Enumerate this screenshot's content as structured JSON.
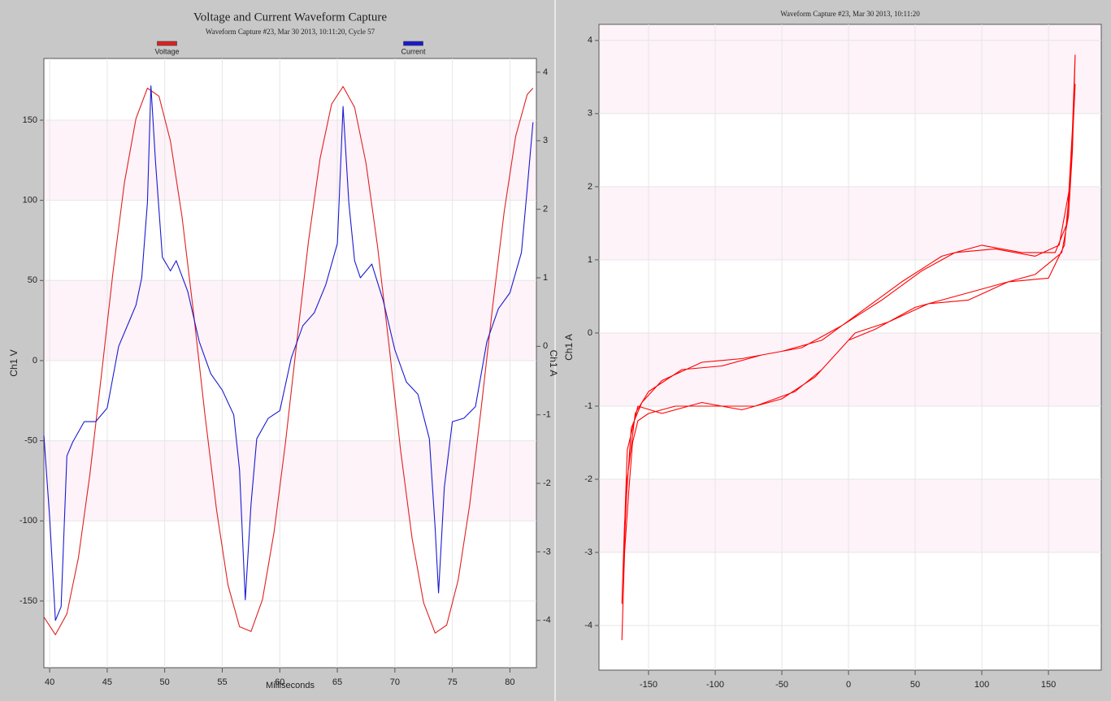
{
  "chart_data": [
    {
      "type": "line",
      "title": "Voltage and Current Waveform Capture",
      "subtitle": "Waveform Capture #23, Mar 30 2013, 10:11:20,  Cycle 57",
      "x_label": "Milliseconds",
      "y_label": "Ch1 V",
      "y2_label": "Ch1 A",
      "xlim": [
        39.5,
        82.3
      ],
      "ylim": [
        -191.6,
        188.5
      ],
      "y2lim": [
        -4.69,
        4.2
      ],
      "xticks": [
        40,
        45,
        50,
        55,
        60,
        65,
        70,
        75,
        80
      ],
      "yticks": [
        -150,
        -100,
        -50,
        0,
        50,
        100,
        150
      ],
      "y2ticks": [
        -4,
        -3,
        -2,
        -1,
        0,
        1,
        2,
        3,
        4
      ],
      "grid": true,
      "series": [
        {
          "name": "Voltage",
          "color": "#e02020",
          "x": [
            39.5,
            40.5,
            41.5,
            42.5,
            43.5,
            44.5,
            45.5,
            46.5,
            47.5,
            48.5,
            49.5,
            50.5,
            51.5,
            52.5,
            53.5,
            54.5,
            55.5,
            56.5,
            57.5,
            58.5,
            59.5,
            60.5,
            61.5,
            62.5,
            63.5,
            64.5,
            65.5,
            66.5,
            67.5,
            68.5,
            69.5,
            70.5,
            71.5,
            72.5,
            73.5,
            74.5,
            75.5,
            76.5,
            77.5,
            78.5,
            79.5,
            80.5,
            81.5,
            82
          ],
          "values": [
            -160,
            -171,
            -158,
            -123,
            -71,
            -9,
            55,
            111,
            151,
            170,
            165,
            137,
            90,
            30,
            -34,
            -93,
            -140,
            -166,
            -169,
            -149,
            -107,
            -51,
            13,
            75,
            126,
            160,
            171,
            158,
            123,
            71,
            9,
            -56,
            -111,
            -151,
            -170,
            -165,
            -137,
            -90,
            -30,
            34,
            93,
            140,
            166,
            170
          ]
        },
        {
          "name": "Current",
          "color": "#1a1ad0",
          "axis": "y2",
          "x": [
            39.5,
            40,
            40.5,
            41,
            41.5,
            42,
            43,
            44,
            45,
            46,
            47,
            47.5,
            48,
            48.5,
            48.8,
            49.2,
            49.8,
            50.5,
            51,
            52,
            53,
            54,
            55,
            56,
            56.5,
            57,
            57.5,
            58,
            59,
            60,
            61,
            62,
            63,
            64,
            65,
            65.5,
            66,
            66.5,
            67,
            68,
            69,
            70,
            71,
            72,
            73,
            73.5,
            73.8,
            74.3,
            75,
            76,
            77,
            78,
            79,
            80,
            81,
            81.5,
            82
          ],
          "values": [
            -1.3,
            -2.5,
            -4.0,
            -3.8,
            -1.6,
            -1.4,
            -1.1,
            -1.1,
            -0.9,
            0,
            0.4,
            0.6,
            1.0,
            2.1,
            3.8,
            2.7,
            1.3,
            1.1,
            1.25,
            0.8,
            0.07,
            -0.4,
            -0.64,
            -1.0,
            -1.8,
            -3.7,
            -2.3,
            -1.35,
            -1.05,
            -0.94,
            -0.17,
            0.3,
            0.49,
            0.9,
            1.5,
            3.5,
            2.1,
            1.25,
            1.0,
            1.2,
            0.66,
            -0.05,
            -0.52,
            -0.7,
            -1.35,
            -2.65,
            -3.6,
            -2.06,
            -1.1,
            -1.05,
            -0.88,
            0.07,
            0.55,
            0.78,
            1.37,
            2.3,
            3.27
          ]
        }
      ]
    },
    {
      "type": "line",
      "title": "Waveform Capture #23, Mar 30 2013, 10:11:20",
      "y_label": "Ch1 A",
      "xlim": [
        -187.2,
        189.6
      ],
      "ylim": [
        -4.61,
        4.22
      ],
      "xticks": [
        -150,
        -100,
        -50,
        0,
        50,
        100,
        150
      ],
      "yticks": [
        -4,
        -3,
        -2,
        -1,
        0,
        1,
        2,
        3,
        4
      ],
      "grid": true,
      "series": [
        {
          "color": "#ff0000",
          "x": [
            -170,
            -168,
            -165,
            -162,
            -158,
            -150,
            -130,
            -100,
            -70,
            -40,
            -20,
            0,
            20,
            50,
            80,
            110,
            140,
            160,
            165,
            168,
            170,
            168,
            164,
            155,
            130,
            100,
            70,
            40,
            10,
            -20,
            -50,
            -80,
            -110,
            -140,
            -155,
            -163,
            -168,
            -170,
            -166,
            -158,
            -140,
            -110,
            -80,
            -50,
            -25,
            5,
            30,
            60,
            90,
            120,
            150,
            162,
            167,
            170,
            166,
            158,
            140,
            110,
            80,
            55,
            25,
            -5,
            -35,
            -65,
            -95,
            -125,
            -150,
            -160,
            -166,
            -169
          ],
          "values": [
            -4.2,
            -3.0,
            -2.2,
            -1.5,
            -1.2,
            -1.1,
            -1.0,
            -1.0,
            -1.0,
            -0.8,
            -0.5,
            -0.1,
            0.05,
            0.35,
            0.5,
            0.65,
            0.8,
            1.1,
            1.6,
            2.5,
            3.8,
            2.8,
            1.5,
            1.1,
            1.1,
            1.2,
            1.05,
            0.7,
            0.3,
            -0.1,
            -0.25,
            -0.35,
            -0.4,
            -0.65,
            -0.95,
            -1.3,
            -2.6,
            -3.7,
            -1.6,
            -1.0,
            -1.1,
            -0.95,
            -1.05,
            -0.9,
            -0.6,
            0.0,
            0.15,
            0.4,
            0.45,
            0.7,
            0.75,
            1.2,
            2.2,
            3.4,
            2.0,
            1.2,
            1.05,
            1.15,
            1.1,
            0.85,
            0.45,
            0.1,
            -0.2,
            -0.3,
            -0.45,
            -0.5,
            -0.8,
            -1.1,
            -2.0,
            -3.2
          ]
        }
      ]
    }
  ]
}
